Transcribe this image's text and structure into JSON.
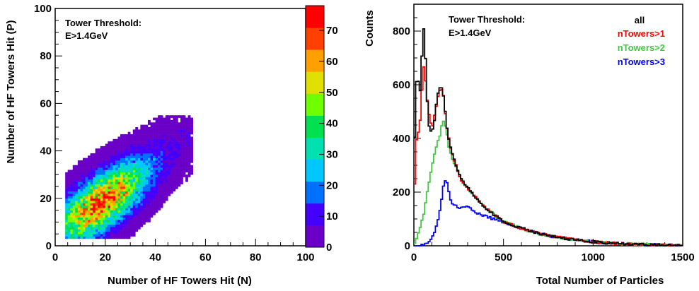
{
  "chart_data": [
    {
      "type": "heatmap",
      "xlabel": "Number of HF Towers Hit (N)",
      "ylabel": "Number of HF Towers Hit (P)",
      "xlim": [
        0,
        100
      ],
      "ylim": [
        0,
        100
      ],
      "x_ticks": [
        "0",
        "20",
        "40",
        "60",
        "80",
        "100"
      ],
      "y_ticks": [
        "0",
        "20",
        "40",
        "60",
        "80",
        "100"
      ],
      "annotation": [
        "Tower Threshold:",
        "E>1.4GeV"
      ],
      "colorbar": {
        "range": [
          0,
          78
        ],
        "ticks": [
          "0",
          "10",
          "20",
          "30",
          "40",
          "50",
          "60",
          "70"
        ],
        "palette": [
          "#6a00c8",
          "#4400ff",
          "#0070ff",
          "#00c8ff",
          "#00e0b0",
          "#00e050",
          "#70ff00",
          "#e0e000",
          "#ffa000",
          "#ff4000",
          "#ff0000"
        ]
      },
      "distribution": {
        "peak": [
          18,
          18
        ],
        "peak_counts": 78,
        "x_extent": [
          4,
          55
        ],
        "y_extent": [
          3,
          55
        ],
        "correlation": 0.7
      }
    },
    {
      "type": "line",
      "xlabel": "Total Number of Particles",
      "ylabel": "Counts",
      "xlim": [
        0,
        1500
      ],
      "ylim": [
        0,
        900
      ],
      "x_ticks": [
        "0",
        "500",
        "1000",
        "1500"
      ],
      "y_ticks": [
        "0",
        "200",
        "400",
        "600",
        "800"
      ],
      "annotation": [
        "Tower Threshold:",
        "E>1.4GeV"
      ],
      "series": [
        {
          "name": "all",
          "color": "#000000",
          "points": [
            [
              0,
              300
            ],
            [
              12,
              560
            ],
            [
              20,
              690
            ],
            [
              30,
              540
            ],
            [
              40,
              620
            ],
            [
              52,
              820
            ],
            [
              60,
              790
            ],
            [
              72,
              560
            ],
            [
              85,
              450
            ],
            [
              100,
              420
            ],
            [
              115,
              470
            ],
            [
              130,
              560
            ],
            [
              145,
              590
            ],
            [
              160,
              590
            ],
            [
              170,
              530
            ],
            [
              185,
              440
            ],
            [
              200,
              380
            ],
            [
              220,
              330
            ],
            [
              240,
              290
            ],
            [
              260,
              255
            ],
            [
              290,
              225
            ],
            [
              320,
              200
            ],
            [
              360,
              170
            ],
            [
              400,
              140
            ],
            [
              450,
              115
            ],
            [
              500,
              90
            ],
            [
              600,
              65
            ],
            [
              700,
              45
            ],
            [
              800,
              32
            ],
            [
              900,
              22
            ],
            [
              1000,
              15
            ],
            [
              1100,
              10
            ],
            [
              1200,
              6
            ],
            [
              1300,
              4
            ],
            [
              1400,
              2
            ],
            [
              1500,
              1
            ]
          ]
        },
        {
          "name": "nTowers>1",
          "color": "#ff0000",
          "points": [
            [
              0,
              130
            ],
            [
              12,
              380
            ],
            [
              20,
              430
            ],
            [
              30,
              420
            ],
            [
              42,
              540
            ],
            [
              52,
              680
            ],
            [
              62,
              640
            ],
            [
              75,
              540
            ],
            [
              90,
              460
            ],
            [
              105,
              450
            ],
            [
              120,
              500
            ],
            [
              135,
              560
            ],
            [
              150,
              590
            ],
            [
              165,
              560
            ],
            [
              180,
              460
            ],
            [
              200,
              380
            ],
            [
              220,
              330
            ],
            [
              240,
              290
            ],
            [
              260,
              250
            ],
            [
              290,
              220
            ],
            [
              320,
              200
            ],
            [
              360,
              170
            ],
            [
              400,
              140
            ],
            [
              450,
              115
            ],
            [
              500,
              90
            ],
            [
              600,
              65
            ],
            [
              700,
              45
            ],
            [
              800,
              32
            ],
            [
              900,
              22
            ],
            [
              1000,
              15
            ],
            [
              1100,
              10
            ],
            [
              1200,
              6
            ],
            [
              1300,
              4
            ],
            [
              1400,
              2
            ],
            [
              1500,
              1
            ]
          ]
        },
        {
          "name": "nTowers>2",
          "color": "#40c840",
          "points": [
            [
              0,
              5
            ],
            [
              15,
              30
            ],
            [
              35,
              70
            ],
            [
              55,
              120
            ],
            [
              75,
              200
            ],
            [
              95,
              270
            ],
            [
              115,
              340
            ],
            [
              130,
              380
            ],
            [
              145,
              410
            ],
            [
              160,
              470
            ],
            [
              175,
              450
            ],
            [
              195,
              370
            ],
            [
              215,
              320
            ],
            [
              240,
              290
            ],
            [
              260,
              250
            ],
            [
              290,
              220
            ],
            [
              320,
              200
            ],
            [
              360,
              170
            ],
            [
              400,
              140
            ],
            [
              450,
              115
            ],
            [
              500,
              90
            ],
            [
              600,
              65
            ],
            [
              700,
              45
            ],
            [
              800,
              32
            ],
            [
              900,
              22
            ],
            [
              1000,
              15
            ],
            [
              1100,
              10
            ],
            [
              1200,
              6
            ],
            [
              1300,
              4
            ],
            [
              1400,
              2
            ],
            [
              1500,
              1
            ]
          ]
        },
        {
          "name": "nTowers>3",
          "color": "#0000ff",
          "points": [
            [
              0,
              0
            ],
            [
              40,
              2
            ],
            [
              80,
              10
            ],
            [
              110,
              40
            ],
            [
              130,
              80
            ],
            [
              150,
              150
            ],
            [
              165,
              220
            ],
            [
              180,
              250
            ],
            [
              195,
              200
            ],
            [
              210,
              160
            ],
            [
              230,
              150
            ],
            [
              250,
              140
            ],
            [
              280,
              150
            ],
            [
              310,
              140
            ],
            [
              340,
              125
            ],
            [
              380,
              115
            ],
            [
              420,
              105
            ],
            [
              470,
              95
            ],
            [
              520,
              85
            ],
            [
              600,
              65
            ],
            [
              700,
              45
            ],
            [
              800,
              32
            ],
            [
              900,
              22
            ],
            [
              1000,
              15
            ],
            [
              1100,
              10
            ],
            [
              1200,
              6
            ],
            [
              1300,
              4
            ],
            [
              1400,
              2
            ],
            [
              1500,
              1
            ]
          ]
        }
      ]
    }
  ]
}
